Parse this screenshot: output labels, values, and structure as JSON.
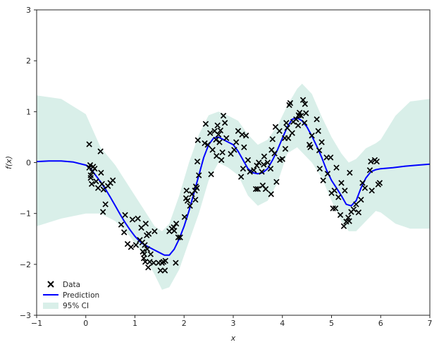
{
  "chart_data": {
    "type": "scatter",
    "title": "",
    "xlabel": "x",
    "ylabel": "f(x)",
    "xlim": [
      -1,
      7
    ],
    "ylim": [
      -3,
      3
    ],
    "x_ticks": [
      -1,
      0,
      1,
      2,
      3,
      4,
      5,
      6,
      7
    ],
    "y_ticks": [
      -3,
      -2,
      -1,
      0,
      1,
      2,
      3
    ],
    "x_tick_labels": [
      "−1",
      "0",
      "1",
      "2",
      "3",
      "4",
      "5",
      "6",
      "7"
    ],
    "y_tick_labels": [
      "−3",
      "−2",
      "−1",
      "0",
      "1",
      "2",
      "3"
    ],
    "grid": false,
    "legend_position": "lower-left",
    "colors": {
      "data": "#000000",
      "prediction": "#0000ff",
      "ci": "#d9efe9"
    },
    "series": [
      {
        "name": "Data",
        "type": "scatter",
        "marker": "x",
        "points": [
          [
            0.07,
            0.36
          ],
          [
            0.07,
            -0.1
          ],
          [
            0.09,
            -0.05
          ],
          [
            0.1,
            -0.25
          ],
          [
            0.1,
            -0.3
          ],
          [
            0.12,
            -0.42
          ],
          [
            0.13,
            -0.18
          ],
          [
            0.15,
            -0.08
          ],
          [
            0.18,
            -0.12
          ],
          [
            0.21,
            -0.37
          ],
          [
            0.25,
            -0.5
          ],
          [
            0.3,
            0.22
          ],
          [
            0.31,
            -0.2
          ],
          [
            0.33,
            -0.42
          ],
          [
            0.36,
            -0.53
          ],
          [
            0.35,
            -0.97
          ],
          [
            0.4,
            -0.82
          ],
          [
            0.45,
            -0.46
          ],
          [
            0.5,
            -0.4
          ],
          [
            0.55,
            -0.35
          ],
          [
            0.72,
            -1.22
          ],
          [
            0.78,
            -1.37
          ],
          [
            0.8,
            -1.03
          ],
          [
            0.85,
            -1.6
          ],
          [
            0.92,
            -1.66
          ],
          [
            0.95,
            -1.12
          ],
          [
            1.02,
            -1.62
          ],
          [
            1.06,
            -1.1
          ],
          [
            1.1,
            -1.52
          ],
          [
            1.13,
            -1.28
          ],
          [
            1.15,
            -1.57
          ],
          [
            1.16,
            -1.75
          ],
          [
            1.18,
            -1.88
          ],
          [
            1.19,
            -1.8
          ],
          [
            1.2,
            -1.62
          ],
          [
            1.21,
            -1.95
          ],
          [
            1.22,
            -1.2
          ],
          [
            1.24,
            -1.43
          ],
          [
            1.25,
            -1.7
          ],
          [
            1.27,
            -2.06
          ],
          [
            1.28,
            -1.4
          ],
          [
            1.3,
            -1.95
          ],
          [
            1.32,
            -1.8
          ],
          [
            1.38,
            -1.97
          ],
          [
            1.4,
            -1.35
          ],
          [
            1.48,
            -1.97
          ],
          [
            1.52,
            -2.12
          ],
          [
            1.55,
            -1.97
          ],
          [
            1.58,
            -1.95
          ],
          [
            1.61,
            -2.12
          ],
          [
            1.62,
            -1.93
          ],
          [
            1.7,
            -1.35
          ],
          [
            1.75,
            -1.3
          ],
          [
            1.79,
            -1.27
          ],
          [
            1.8,
            -1.34
          ],
          [
            1.83,
            -1.97
          ],
          [
            1.84,
            -1.2
          ],
          [
            1.88,
            -1.47
          ],
          [
            1.92,
            -1.47
          ],
          [
            2.01,
            -1.07
          ],
          [
            2.04,
            -0.7
          ],
          [
            2.05,
            -0.55
          ],
          [
            2.07,
            -0.75
          ],
          [
            2.12,
            -0.85
          ],
          [
            2.16,
            -0.62
          ],
          [
            2.22,
            -0.55
          ],
          [
            2.23,
            -0.73
          ],
          [
            2.24,
            -0.47
          ],
          [
            2.26,
            -0.5
          ],
          [
            2.27,
            0.02
          ],
          [
            2.3,
            -0.25
          ],
          [
            2.28,
            0.44
          ],
          [
            2.42,
            0.38
          ],
          [
            2.44,
            0.76
          ],
          [
            2.48,
            0.35
          ],
          [
            2.53,
            0.58
          ],
          [
            2.55,
            -0.23
          ],
          [
            2.58,
            0.25
          ],
          [
            2.62,
            0.62
          ],
          [
            2.65,
            0.45
          ],
          [
            2.66,
            0.13
          ],
          [
            2.68,
            0.73
          ],
          [
            2.7,
            0.55
          ],
          [
            2.72,
            0.4
          ],
          [
            2.74,
            0.63
          ],
          [
            2.76,
            0.05
          ],
          [
            2.78,
            0.2
          ],
          [
            2.8,
            0.92
          ],
          [
            2.83,
            0.78
          ],
          [
            2.86,
            0.48
          ],
          [
            2.95,
            0.17
          ],
          [
            3.02,
            0.25
          ],
          [
            3.06,
            0.4
          ],
          [
            3.1,
            0.62
          ],
          [
            3.16,
            -0.28
          ],
          [
            3.18,
            0.55
          ],
          [
            3.2,
            -0.12
          ],
          [
            3.22,
            0.3
          ],
          [
            3.26,
            0.53
          ],
          [
            3.3,
            0.05
          ],
          [
            3.34,
            -0.18
          ],
          [
            3.42,
            -0.15
          ],
          [
            3.46,
            -0.52
          ],
          [
            3.48,
            -0.06
          ],
          [
            3.5,
            -0.52
          ],
          [
            3.52,
            0.0
          ],
          [
            3.58,
            -0.18
          ],
          [
            3.6,
            -0.45
          ],
          [
            3.62,
            -0.04
          ],
          [
            3.63,
            0.12
          ],
          [
            3.66,
            -0.52
          ],
          [
            3.7,
            0.0
          ],
          [
            3.76,
            -0.12
          ],
          [
            3.77,
            -0.62
          ],
          [
            3.78,
            0.25
          ],
          [
            3.8,
            0.46
          ],
          [
            3.84,
            0.18
          ],
          [
            3.86,
            0.7
          ],
          [
            3.88,
            -0.38
          ],
          [
            3.94,
            0.62
          ],
          [
            3.95,
            0.05
          ],
          [
            4.0,
            0.07
          ],
          [
            4.05,
            0.48
          ],
          [
            4.06,
            0.27
          ],
          [
            4.08,
            0.78
          ],
          [
            4.1,
            0.68
          ],
          [
            4.12,
            0.48
          ],
          [
            4.14,
            1.13
          ],
          [
            4.16,
            1.17
          ],
          [
            4.2,
            0.58
          ],
          [
            4.22,
            0.8
          ],
          [
            4.28,
            0.85
          ],
          [
            4.32,
            0.73
          ],
          [
            4.33,
            0.93
          ],
          [
            4.35,
            0.98
          ],
          [
            4.38,
            0.92
          ],
          [
            4.42,
            1.23
          ],
          [
            4.45,
            0.78
          ],
          [
            4.46,
            1.15
          ],
          [
            4.48,
            0.97
          ],
          [
            4.55,
            0.35
          ],
          [
            4.57,
            0.3
          ],
          [
            4.6,
            0.53
          ],
          [
            4.7,
            0.85
          ],
          [
            4.73,
            0.62
          ],
          [
            4.75,
            0.24
          ],
          [
            4.76,
            -0.12
          ],
          [
            4.8,
            0.4
          ],
          [
            4.83,
            -0.35
          ],
          [
            4.9,
            0.1
          ],
          [
            4.92,
            -0.22
          ],
          [
            4.98,
            0.1
          ],
          [
            5.0,
            -0.6
          ],
          [
            5.03,
            -0.9
          ],
          [
            5.06,
            -0.55
          ],
          [
            5.08,
            -0.9
          ],
          [
            5.1,
            -0.1
          ],
          [
            5.14,
            -0.68
          ],
          [
            5.18,
            -1.03
          ],
          [
            5.2,
            -0.4
          ],
          [
            5.25,
            -1.25
          ],
          [
            5.27,
            -0.55
          ],
          [
            5.3,
            -1.16
          ],
          [
            5.34,
            -1.08
          ],
          [
            5.36,
            -1.15
          ],
          [
            5.37,
            -0.2
          ],
          [
            5.4,
            -0.97
          ],
          [
            5.45,
            -0.92
          ],
          [
            5.5,
            -0.82
          ],
          [
            5.55,
            -0.98
          ],
          [
            5.6,
            -0.73
          ],
          [
            5.63,
            -0.4
          ],
          [
            5.68,
            -0.5
          ],
          [
            5.78,
            -0.15
          ],
          [
            5.8,
            0.02
          ],
          [
            5.82,
            -0.55
          ],
          [
            5.88,
            0.05
          ],
          [
            5.92,
            0.02
          ],
          [
            5.95,
            -0.43
          ],
          [
            5.98,
            -0.4
          ]
        ]
      },
      {
        "name": "Prediction",
        "type": "line",
        "x": [
          -1.0,
          -0.75,
          -0.5,
          -0.25,
          0.0,
          0.1,
          0.2,
          0.3,
          0.4,
          0.5,
          0.6,
          0.7,
          0.8,
          0.9,
          1.0,
          1.1,
          1.2,
          1.3,
          1.4,
          1.5,
          1.6,
          1.7,
          1.8,
          1.9,
          2.0,
          2.1,
          2.2,
          2.3,
          2.4,
          2.5,
          2.6,
          2.7,
          2.8,
          2.9,
          3.0,
          3.1,
          3.2,
          3.3,
          3.4,
          3.5,
          3.6,
          3.7,
          3.8,
          3.9,
          4.0,
          4.1,
          4.2,
          4.3,
          4.4,
          4.5,
          4.6,
          4.7,
          4.8,
          4.9,
          5.0,
          5.1,
          5.2,
          5.3,
          5.4,
          5.5,
          5.6,
          5.7,
          5.8,
          5.9,
          6.0,
          6.25,
          6.5,
          6.75,
          7.0
        ],
        "y": [
          0.02,
          0.03,
          0.03,
          0.01,
          -0.05,
          -0.12,
          -0.25,
          -0.38,
          -0.52,
          -0.68,
          -0.85,
          -1.02,
          -1.18,
          -1.32,
          -1.45,
          -1.55,
          -1.62,
          -1.67,
          -1.72,
          -1.77,
          -1.82,
          -1.82,
          -1.7,
          -1.5,
          -1.25,
          -0.95,
          -0.6,
          -0.25,
          0.1,
          0.35,
          0.48,
          0.5,
          0.45,
          0.4,
          0.35,
          0.22,
          0.05,
          -0.12,
          -0.2,
          -0.22,
          -0.2,
          -0.12,
          0.05,
          0.25,
          0.48,
          0.7,
          0.85,
          0.88,
          0.82,
          0.7,
          0.52,
          0.32,
          0.1,
          -0.15,
          -0.35,
          -0.5,
          -0.65,
          -0.82,
          -0.85,
          -0.75,
          -0.5,
          -0.3,
          -0.18,
          -0.14,
          -0.12,
          -0.1,
          -0.07,
          -0.05,
          -0.03
        ]
      },
      {
        "name": "95% CI",
        "type": "area",
        "x": [
          -1.0,
          -0.5,
          0.0,
          0.3,
          0.6,
          0.9,
          1.2,
          1.4,
          1.55,
          1.7,
          1.9,
          2.1,
          2.3,
          2.5,
          2.7,
          2.9,
          3.1,
          3.3,
          3.5,
          3.7,
          3.9,
          4.1,
          4.3,
          4.4,
          4.6,
          4.8,
          5.0,
          5.2,
          5.35,
          5.5,
          5.7,
          5.9,
          6.0,
          6.3,
          6.6,
          7.0
        ],
        "upper": [
          1.32,
          1.25,
          0.95,
          0.3,
          -0.05,
          -0.5,
          -0.95,
          -1.25,
          -1.35,
          -1.2,
          -0.65,
          0.0,
          0.55,
          0.93,
          1.0,
          0.92,
          0.82,
          0.55,
          0.35,
          0.45,
          0.72,
          1.12,
          1.45,
          1.55,
          1.35,
          0.9,
          0.5,
          0.18,
          0.0,
          0.07,
          0.28,
          0.38,
          0.45,
          0.92,
          1.2,
          1.25
        ],
        "lower": [
          -1.25,
          -1.1,
          -1.0,
          -1.0,
          -1.15,
          -1.45,
          -1.85,
          -2.2,
          -2.5,
          -2.45,
          -2.1,
          -1.55,
          -1.0,
          -0.35,
          0.0,
          -0.1,
          -0.25,
          -0.65,
          -0.85,
          -0.75,
          -0.4,
          0.18,
          0.3,
          0.2,
          0.0,
          -0.3,
          -0.75,
          -1.15,
          -1.35,
          -1.35,
          -1.15,
          -0.95,
          -0.98,
          -1.2,
          -1.3,
          -1.3
        ]
      }
    ]
  }
}
